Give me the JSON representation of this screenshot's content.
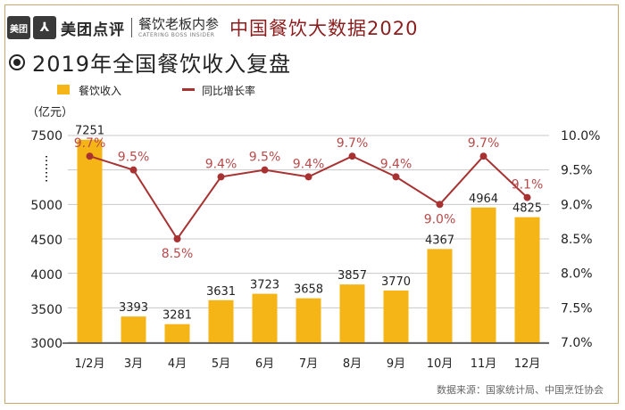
{
  "header": {
    "logo_left": "美团",
    "logo_right": "⅄",
    "brand": "美团点评",
    "sub_brand": "餐饮老板内参",
    "sub_brand_en": "CATERING BOSS INSIDER",
    "series_title": "中国餐饮大数据2020"
  },
  "page_title": "2019年全国餐饮收入复盘",
  "source": "数据来源：国家统计局、中国烹饪协会",
  "colors": {
    "bar": "#f5b516",
    "line": "#a83232",
    "axis_text": "#222222",
    "line_label": "#b94a4a"
  },
  "chart_data": {
    "type": "bar+line",
    "categories": [
      "1/2月",
      "3月",
      "4月",
      "5月",
      "6月",
      "7月",
      "8月",
      "9月",
      "10月",
      "11月",
      "12月"
    ],
    "y_unit_label": "（亿元）",
    "y_ticks": [
      "3000",
      "3500",
      "4000",
      "4500",
      "5000",
      "",
      "7500"
    ],
    "y2_ticks": [
      "7.0%",
      "7.5%",
      "8.0%",
      "8.5%",
      "9.0%",
      "9.5%",
      "10.0%"
    ],
    "y2lim": [
      7.0,
      10.0
    ],
    "grid": true,
    "legend_position": "top-left",
    "series": [
      {
        "name": "餐饮收入",
        "kind": "bar",
        "axis": "left",
        "values": [
          7251,
          3393,
          3281,
          3631,
          3723,
          3658,
          3857,
          3770,
          4367,
          4964,
          4825
        ],
        "labels": [
          "7251",
          "3393",
          "3281",
          "3631",
          "3723",
          "3658",
          "3857",
          "3770",
          "4367",
          "4964",
          "4825"
        ]
      },
      {
        "name": "同比增长率",
        "kind": "line",
        "axis": "right",
        "values": [
          9.7,
          9.5,
          8.5,
          9.4,
          9.5,
          9.4,
          9.7,
          9.4,
          9.0,
          9.7,
          9.1
        ],
        "labels": [
          "9.7%",
          "9.5%",
          "8.5%",
          "9.4%",
          "9.5%",
          "9.4%",
          "9.7%",
          "9.4%",
          "9.0%",
          "9.7%",
          "9.1%"
        ]
      }
    ]
  }
}
